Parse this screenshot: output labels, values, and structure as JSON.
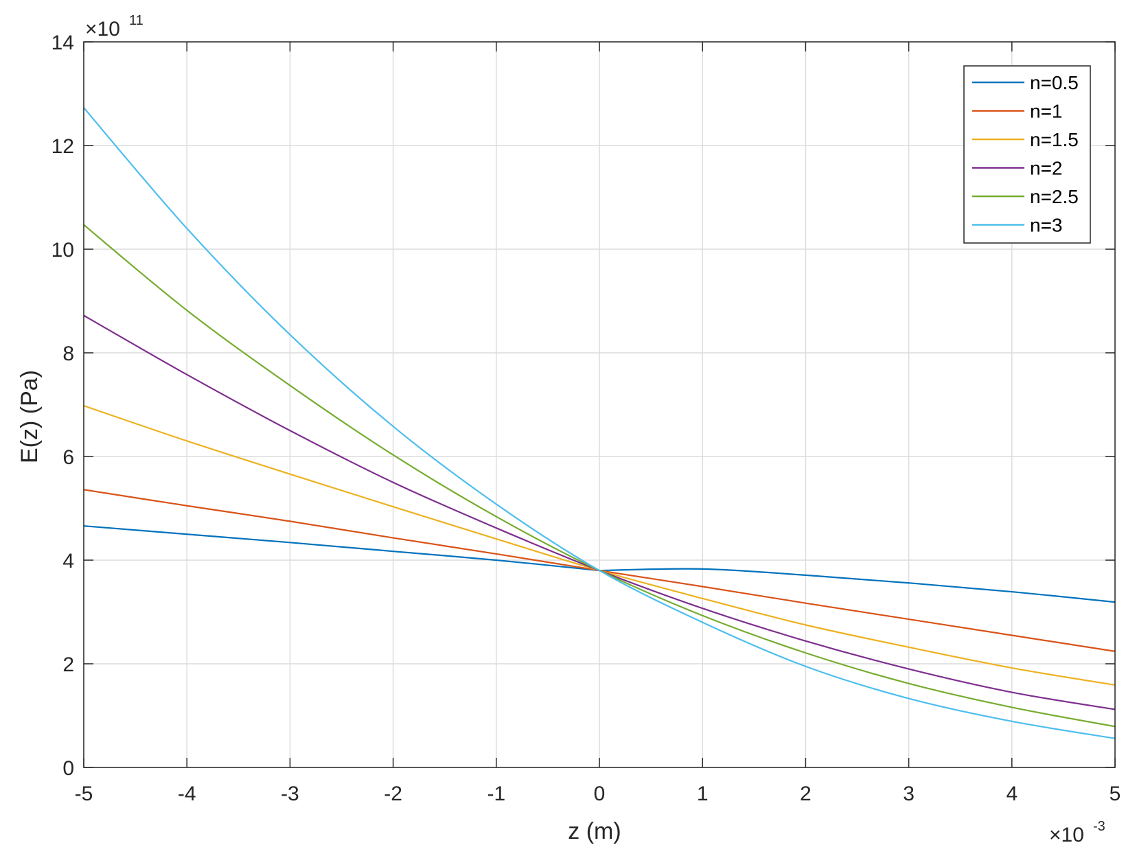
{
  "chart_data": {
    "type": "line",
    "xlabel": "z (m)",
    "ylabel": "E(z) (Pa)",
    "x_exponent": {
      "base": "×10",
      "power": "-3"
    },
    "y_exponent": {
      "base": "×10",
      "power": "11"
    },
    "xlim": [
      -5,
      5
    ],
    "ylim": [
      0,
      14
    ],
    "xticks": [
      -5,
      -4,
      -3,
      -2,
      -1,
      0,
      1,
      2,
      3,
      4,
      5
    ],
    "yticks": [
      0,
      2,
      4,
      6,
      8,
      10,
      12,
      14
    ],
    "xtick_labels": [
      "-5",
      "-4",
      "-3",
      "-2",
      "-1",
      "0",
      "1",
      "2",
      "3",
      "4",
      "5"
    ],
    "ytick_labels": [
      "0",
      "2",
      "4",
      "6",
      "8",
      "10",
      "12",
      "14"
    ],
    "grid": true,
    "legend_position": "top-right",
    "x": [
      -5,
      -4,
      -3,
      -2,
      -1,
      0,
      1,
      2,
      3,
      4,
      5
    ],
    "series": [
      {
        "name": "n=0.5",
        "color": "#0072BD",
        "values": [
          4.66,
          4.5,
          4.34,
          4.17,
          4.0,
          3.8,
          3.83,
          3.71,
          3.56,
          3.39,
          3.19
        ]
      },
      {
        "name": "n=1",
        "color": "#D95319",
        "values": [
          5.36,
          5.05,
          4.75,
          4.43,
          4.12,
          3.8,
          3.49,
          3.17,
          2.86,
          2.55,
          2.24
        ]
      },
      {
        "name": "n=1.5",
        "color": "#EDB120",
        "values": [
          6.98,
          6.3,
          5.66,
          5.03,
          4.41,
          3.8,
          3.26,
          2.75,
          2.32,
          1.92,
          1.59
        ]
      },
      {
        "name": "n=2",
        "color": "#7E2F8E",
        "values": [
          8.72,
          7.58,
          6.5,
          5.5,
          4.62,
          3.8,
          3.07,
          2.44,
          1.9,
          1.45,
          1.12
        ]
      },
      {
        "name": "n=2.5",
        "color": "#77AC30",
        "values": [
          10.47,
          8.82,
          7.37,
          6.03,
          4.84,
          3.8,
          2.93,
          2.21,
          1.62,
          1.16,
          0.79
        ]
      },
      {
        "name": "n=3",
        "color": "#4DBEEE",
        "values": [
          12.73,
          10.4,
          8.35,
          6.58,
          5.08,
          3.8,
          2.8,
          1.95,
          1.33,
          0.89,
          0.56
        ]
      }
    ]
  }
}
